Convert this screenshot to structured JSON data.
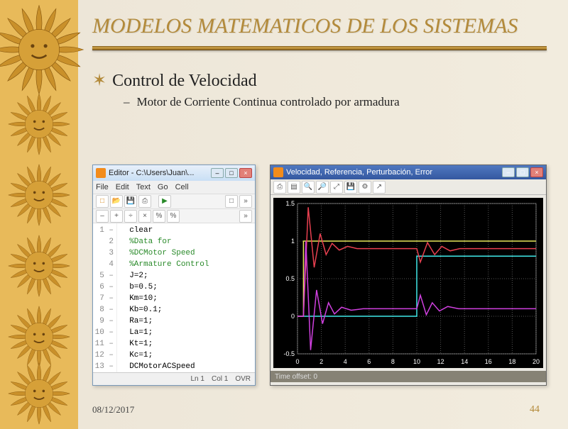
{
  "slide": {
    "title": "MODELOS MATEMATICOS DE LOS SISTEMAS",
    "bullet1": "Control de Velocidad",
    "bullet2": "Motor de Corriente Continua controlado por armadura",
    "date": "08/12/2017",
    "page": "44"
  },
  "colors": {
    "accent": "#b38a3a",
    "sidebar": "#e8ba5a",
    "background": "#ede6d8",
    "rule_top": "#caa14a",
    "rule_bottom": "#a87a28"
  },
  "editor": {
    "title": "Editor - C:\\Users\\Juan\\...",
    "menu": [
      "File",
      "Edit",
      "Text",
      "Go",
      "Cell"
    ],
    "toolbar1_icons": [
      "new-icon",
      "open-icon",
      "save-icon",
      "print-icon",
      "sep",
      "run-icon",
      "sep",
      "box-icon",
      "more-icon"
    ],
    "toolbar2_labels": [
      "–",
      "+",
      "÷",
      "×",
      "%",
      "%"
    ],
    "lines": [
      {
        "n": "1 –",
        "text": "clear",
        "cls": "c-kw"
      },
      {
        "n": "2",
        "text": "%Data for",
        "cls": "c-cm"
      },
      {
        "n": "3",
        "text": "%DCMotor Speed",
        "cls": "c-cm"
      },
      {
        "n": "4",
        "text": "%Armature Control",
        "cls": "c-cm"
      },
      {
        "n": "5 –",
        "text": "J=2;",
        "cls": "c-kw"
      },
      {
        "n": "6 –",
        "text": "b=0.5;",
        "cls": "c-kw"
      },
      {
        "n": "7 –",
        "text": "Km=10;",
        "cls": "c-kw"
      },
      {
        "n": "8 –",
        "text": "Kb=0.1;",
        "cls": "c-kw"
      },
      {
        "n": "9 –",
        "text": "Ra=1;",
        "cls": "c-kw"
      },
      {
        "n": "10 –",
        "text": "La=1;",
        "cls": "c-kw"
      },
      {
        "n": "11 –",
        "text": "Kt=1;",
        "cls": "c-kw"
      },
      {
        "n": "12 –",
        "text": "Kc=1;",
        "cls": "c-kw"
      },
      {
        "n": "13 –",
        "text": "DCMotorACSpeed",
        "cls": "c-kw"
      }
    ],
    "status": {
      "ln": "Ln 1",
      "col": "Col 1",
      "ovr": "OVR"
    }
  },
  "plot": {
    "title": "Velocidad, Referencia, Perturbación, Error",
    "footer": "Time offset: 0",
    "background": "#000000",
    "grid_color": "#555555",
    "xlim": [
      0,
      20
    ],
    "ylim": [
      -0.5,
      1.5
    ],
    "xticks": [
      0,
      2,
      4,
      6,
      8,
      10,
      12,
      14,
      16,
      18,
      20
    ],
    "yticks": [
      -0.5,
      0,
      0.5,
      1,
      1.5
    ],
    "tick_fontsize": 9,
    "tick_color": "#ffffff",
    "series": [
      {
        "name": "referencia",
        "type": "step",
        "color": "#e8e85a",
        "width": 1.5,
        "points": [
          [
            0,
            0
          ],
          [
            0.5,
            0
          ],
          [
            0.5,
            1
          ],
          [
            20,
            1
          ]
        ]
      },
      {
        "name": "perturbacion",
        "type": "step",
        "color": "#40e8e8",
        "width": 1.5,
        "points": [
          [
            0,
            0
          ],
          [
            10,
            0
          ],
          [
            10,
            0.8
          ],
          [
            20,
            0.8
          ]
        ]
      },
      {
        "name": "velocidad",
        "type": "line",
        "color": "#e84050",
        "width": 1.5,
        "points": [
          [
            0,
            0
          ],
          [
            0.5,
            0
          ],
          [
            0.9,
            1.45
          ],
          [
            1.4,
            0.65
          ],
          [
            1.9,
            1.1
          ],
          [
            2.4,
            0.82
          ],
          [
            2.9,
            0.97
          ],
          [
            3.5,
            0.88
          ],
          [
            4.2,
            0.93
          ],
          [
            5,
            0.9
          ],
          [
            6,
            0.9
          ],
          [
            8,
            0.9
          ],
          [
            10,
            0.9
          ],
          [
            10.3,
            0.72
          ],
          [
            10.9,
            0.98
          ],
          [
            11.5,
            0.82
          ],
          [
            12.1,
            0.93
          ],
          [
            12.8,
            0.87
          ],
          [
            13.6,
            0.9
          ],
          [
            15,
            0.9
          ],
          [
            18,
            0.9
          ],
          [
            20,
            0.9
          ]
        ]
      },
      {
        "name": "error",
        "type": "line",
        "color": "#d040e0",
        "width": 1.5,
        "points": [
          [
            0,
            0
          ],
          [
            0.5,
            0
          ],
          [
            0.7,
            1
          ],
          [
            1.1,
            -0.45
          ],
          [
            1.6,
            0.35
          ],
          [
            2.1,
            -0.1
          ],
          [
            2.6,
            0.18
          ],
          [
            3.1,
            0.03
          ],
          [
            3.7,
            0.12
          ],
          [
            4.5,
            0.08
          ],
          [
            5.5,
            0.1
          ],
          [
            8,
            0.1
          ],
          [
            10,
            0.1
          ],
          [
            10.3,
            0.28
          ],
          [
            10.8,
            0.02
          ],
          [
            11.3,
            0.18
          ],
          [
            11.9,
            0.07
          ],
          [
            12.6,
            0.13
          ],
          [
            13.5,
            0.1
          ],
          [
            16,
            0.1
          ],
          [
            20,
            0.1
          ]
        ]
      }
    ]
  }
}
